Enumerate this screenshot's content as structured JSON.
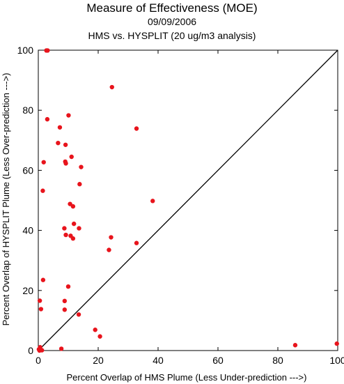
{
  "chart_data": {
    "type": "scatter",
    "title": "Measure of Effectiveness (MOE)",
    "subtitle": "09/09/2006",
    "subtitle2": "HMS vs. HYSPLIT  (20 ug/m3 analysis)",
    "xlabel": "Percent Overlap of HMS Plume (Less Under-prediction --->)",
    "ylabel": "Percent Overlap of HYSPLIT Plume (Less Over-prediction --->)",
    "xlim": [
      0,
      100
    ],
    "ylim": [
      0,
      100
    ],
    "xticks": [
      "0",
      "20",
      "40",
      "60",
      "80",
      "100"
    ],
    "yticks": [
      "0",
      "20",
      "40",
      "60",
      "80",
      "100"
    ],
    "reference_line": "diagonal y = x",
    "grid": false,
    "point_color": "#e8141c",
    "line_color": "#000000",
    "points": [
      {
        "x": 2.7,
        "y": 99.9
      },
      {
        "x": 3.1,
        "y": 99.9
      },
      {
        "x": 24.6,
        "y": 87.7
      },
      {
        "x": 10.1,
        "y": 78.3
      },
      {
        "x": 3.0,
        "y": 77.0
      },
      {
        "x": 7.2,
        "y": 74.3
      },
      {
        "x": 32.8,
        "y": 73.9
      },
      {
        "x": 6.6,
        "y": 69.1
      },
      {
        "x": 9.1,
        "y": 68.5
      },
      {
        "x": 11.1,
        "y": 64.5
      },
      {
        "x": 1.8,
        "y": 62.7
      },
      {
        "x": 9.0,
        "y": 62.9
      },
      {
        "x": 9.2,
        "y": 62.3
      },
      {
        "x": 14.3,
        "y": 61.1
      },
      {
        "x": 13.8,
        "y": 55.4
      },
      {
        "x": 1.5,
        "y": 53.2
      },
      {
        "x": 38.2,
        "y": 49.8
      },
      {
        "x": 10.6,
        "y": 48.8
      },
      {
        "x": 11.6,
        "y": 48.0
      },
      {
        "x": 11.9,
        "y": 42.2
      },
      {
        "x": 8.7,
        "y": 40.7
      },
      {
        "x": 13.6,
        "y": 40.7
      },
      {
        "x": 9.2,
        "y": 38.5
      },
      {
        "x": 10.8,
        "y": 38.2
      },
      {
        "x": 11.6,
        "y": 37.3
      },
      {
        "x": 24.3,
        "y": 37.7
      },
      {
        "x": 32.8,
        "y": 35.8
      },
      {
        "x": 23.6,
        "y": 33.5
      },
      {
        "x": 1.6,
        "y": 23.5
      },
      {
        "x": 10.0,
        "y": 21.3
      },
      {
        "x": 0.5,
        "y": 16.6
      },
      {
        "x": 8.8,
        "y": 16.5
      },
      {
        "x": 0.9,
        "y": 13.8
      },
      {
        "x": 8.8,
        "y": 13.6
      },
      {
        "x": 13.5,
        "y": 12.0
      },
      {
        "x": 19.0,
        "y": 6.9
      },
      {
        "x": 20.6,
        "y": 4.7
      },
      {
        "x": 85.8,
        "y": 1.8
      },
      {
        "x": 99.7,
        "y": 2.3
      },
      {
        "x": 7.7,
        "y": 0.6
      },
      {
        "x": 0.6,
        "y": 1.1
      },
      {
        "x": 0.2,
        "y": 0.4
      },
      {
        "x": 0.9,
        "y": 0.3
      },
      {
        "x": 0.4,
        "y": 0.0
      },
      {
        "x": 1.2,
        "y": 0.1
      }
    ]
  }
}
